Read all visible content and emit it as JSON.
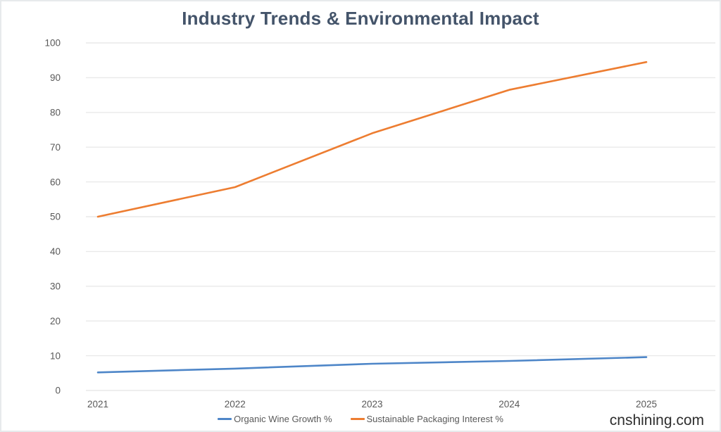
{
  "page": {
    "title": "Industry Trends & Environmental Impact",
    "watermark": "cnshining.com"
  },
  "colors": {
    "title": "#44546A",
    "axis_label": "#595959",
    "gridline": "#e9e9e9",
    "watermark": "#2e2e2e"
  },
  "chart_data": {
    "type": "line",
    "title": "Industry Trends & Environmental Impact",
    "categories": [
      "2021",
      "2022",
      "2023",
      "2024",
      "2025"
    ],
    "series": [
      {
        "name": "Organic Wine Growth %",
        "color": "#4E86C8",
        "values": [
          5.2,
          6.3,
          7.7,
          8.5,
          9.6
        ]
      },
      {
        "name": "Sustainable Packaging Interest %",
        "color": "#ED7D31",
        "values": [
          50,
          58.5,
          74,
          86.5,
          94.5
        ]
      }
    ],
    "ylim": [
      0,
      100
    ],
    "ytick_step": 10,
    "grid": true,
    "legend_position": "bottom",
    "annotations": []
  }
}
